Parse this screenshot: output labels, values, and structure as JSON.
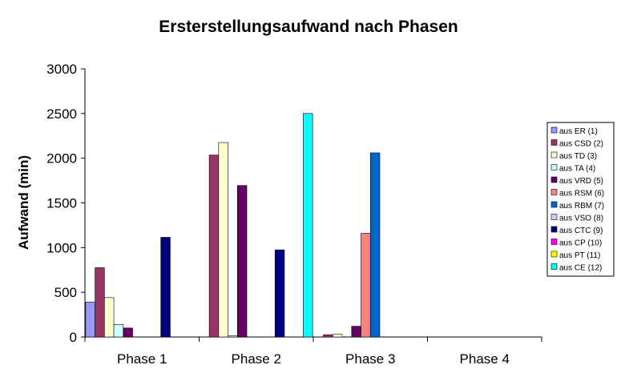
{
  "chart_data": {
    "type": "bar",
    "title": "Ersterstellungsaufwand nach Phasen",
    "xlabel": "",
    "ylabel": "Aufwand (min)",
    "ylim": [
      0,
      3000
    ],
    "yticks": [
      0,
      500,
      1000,
      1500,
      2000,
      2500,
      3000
    ],
    "grid": false,
    "legend_position": "right",
    "categories": [
      "Phase 1",
      "Phase 2",
      "Phase 3",
      "Phase 4"
    ],
    "series": [
      {
        "name": "aus ER (1)",
        "color": "#9999ff",
        "values": [
          390,
          0,
          0,
          0
        ]
      },
      {
        "name": "aus CSD (2)",
        "color": "#993366",
        "values": [
          775,
          2035,
          25,
          0
        ]
      },
      {
        "name": "aus TD (3)",
        "color": "#ffffcc",
        "values": [
          440,
          2175,
          30,
          0
        ]
      },
      {
        "name": "aus TA (4)",
        "color": "#ccffff",
        "values": [
          140,
          15,
          0,
          0
        ]
      },
      {
        "name": "aus VRD (5)",
        "color": "#660066",
        "values": [
          100,
          1695,
          120,
          0
        ]
      },
      {
        "name": "aus RSM (6)",
        "color": "#ff8080",
        "values": [
          0,
          0,
          1160,
          0
        ]
      },
      {
        "name": "aus RBM (7)",
        "color": "#0066cc",
        "values": [
          0,
          0,
          2060,
          0
        ]
      },
      {
        "name": "aus VSO (8)",
        "color": "#ccccff",
        "values": [
          0,
          0,
          0,
          0
        ]
      },
      {
        "name": "aus CTC (9)",
        "color": "#000080",
        "values": [
          1115,
          975,
          0,
          0
        ]
      },
      {
        "name": "aus CP (10)",
        "color": "#ff00ff",
        "values": [
          0,
          0,
          0,
          0
        ]
      },
      {
        "name": "aus PT (11)",
        "color": "#ffff00",
        "values": [
          0,
          0,
          0,
          0
        ]
      },
      {
        "name": "aus CE (12)",
        "color": "#00ffff",
        "values": [
          0,
          2500,
          0,
          0
        ]
      }
    ]
  }
}
